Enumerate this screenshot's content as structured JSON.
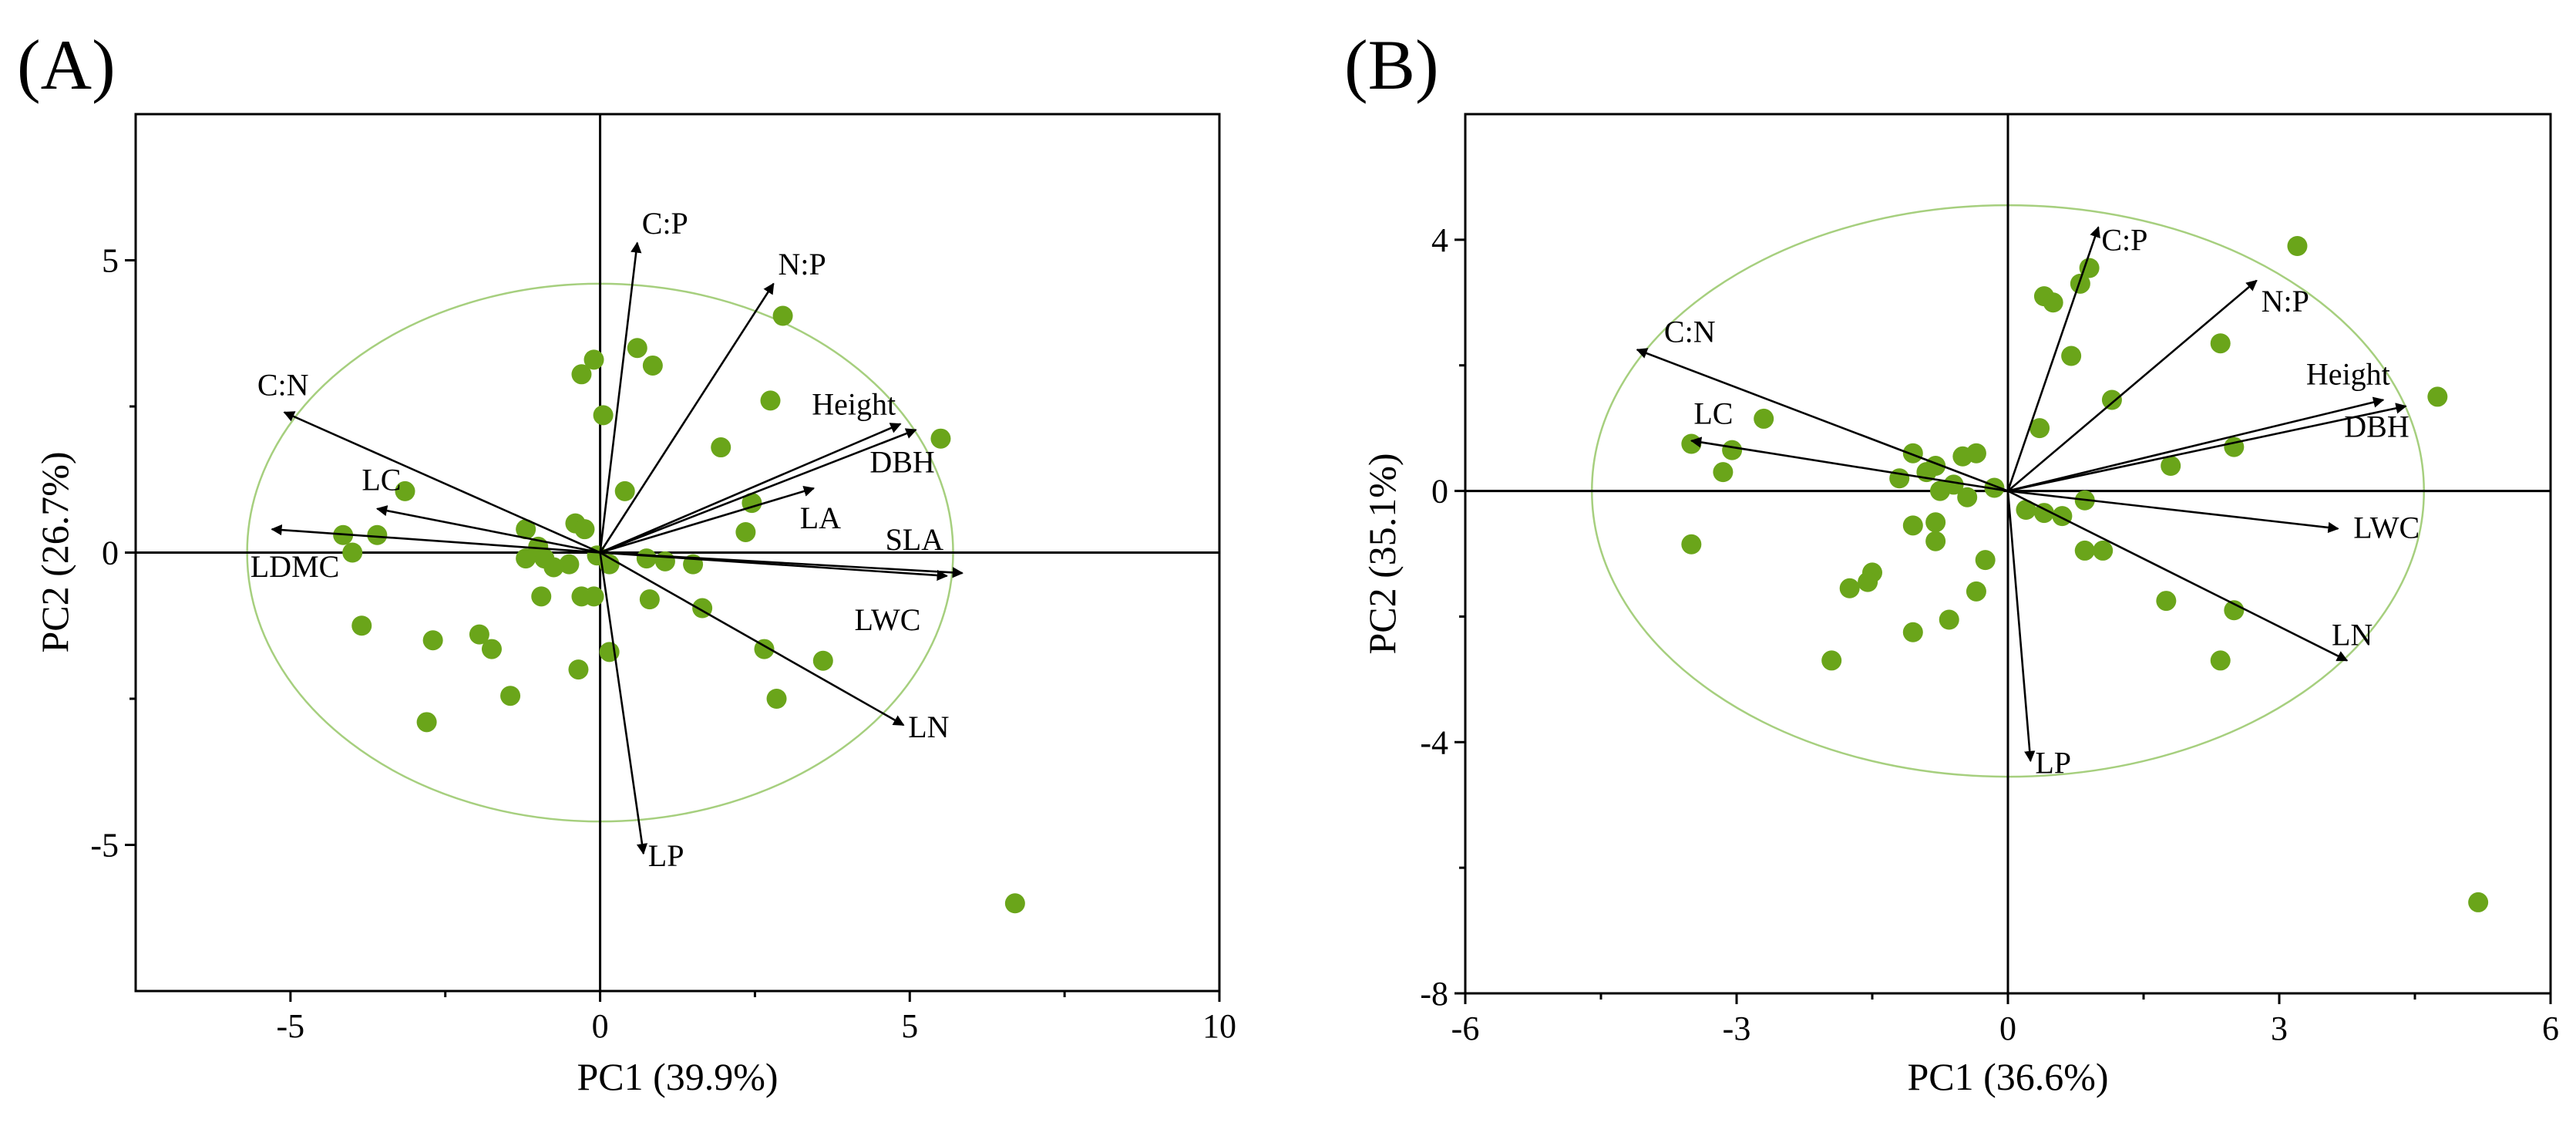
{
  "colors": {
    "point": "#6aa51a",
    "ellipse": "#a6cf7e",
    "axis": "#000000",
    "arrow": "#000000"
  },
  "chart_data": [
    {
      "type": "scatter",
      "panel_label": "(A)",
      "title": "",
      "xlabel": "PC1 (39.9%)",
      "ylabel": "PC2 (26.7%)",
      "xlim": [
        -7.5,
        10
      ],
      "ylim": [
        -7.5,
        7.5
      ],
      "xticks": [
        -5,
        0,
        5,
        10
      ],
      "xtick_labels": [
        "-5",
        "0",
        "5",
        "10"
      ],
      "yticks": [
        -5,
        0,
        5
      ],
      "ytick_labels": [
        "-5",
        "0",
        "5"
      ],
      "ellipse": {
        "cx": 0,
        "cy": 0,
        "rx": 5.7,
        "ry": 4.6
      },
      "points": [
        [
          -0.1,
          3.3
        ],
        [
          -0.3,
          3.05
        ],
        [
          0.6,
          3.5
        ],
        [
          0.85,
          3.2
        ],
        [
          0.05,
          2.35
        ],
        [
          2.95,
          4.05
        ],
        [
          2.75,
          2.6
        ],
        [
          1.95,
          1.8
        ],
        [
          5.5,
          1.95
        ],
        [
          2.45,
          0.85
        ],
        [
          2.35,
          0.35
        ],
        [
          0.4,
          1.05
        ],
        [
          -3.15,
          1.05
        ],
        [
          -4.15,
          0.3
        ],
        [
          -3.6,
          0.3
        ],
        [
          -4.0,
          0.0
        ],
        [
          -1.2,
          0.4
        ],
        [
          -1.0,
          0.1
        ],
        [
          -0.9,
          -0.1
        ],
        [
          -1.2,
          -0.1
        ],
        [
          -0.4,
          0.5
        ],
        [
          -0.25,
          0.4
        ],
        [
          -0.5,
          -0.2
        ],
        [
          -0.05,
          -0.05
        ],
        [
          0.15,
          -0.2
        ],
        [
          0.75,
          -0.1
        ],
        [
          1.05,
          -0.15
        ],
        [
          1.5,
          -0.2
        ],
        [
          -0.75,
          -0.25
        ],
        [
          -0.3,
          -0.75
        ],
        [
          -0.1,
          -0.75
        ],
        [
          -0.95,
          -0.75
        ],
        [
          0.8,
          -0.8
        ],
        [
          1.65,
          -0.95
        ],
        [
          -3.85,
          -1.25
        ],
        [
          -2.7,
          -1.5
        ],
        [
          -1.95,
          -1.4
        ],
        [
          -1.75,
          -1.65
        ],
        [
          0.15,
          -1.7
        ],
        [
          -0.35,
          -2.0
        ],
        [
          2.65,
          -1.65
        ],
        [
          3.6,
          -1.85
        ],
        [
          -1.45,
          -2.45
        ],
        [
          2.85,
          -2.5
        ],
        [
          -2.8,
          -2.9
        ],
        [
          6.7,
          -6.0
        ]
      ],
      "vectors": [
        {
          "label": "C:P",
          "x": 0.6,
          "y": 5.3
        },
        {
          "label": "N:P",
          "x": 2.8,
          "y": 4.6
        },
        {
          "label": "Height",
          "x": 4.85,
          "y": 2.2
        },
        {
          "label": "DBH",
          "x": 5.1,
          "y": 2.1
        },
        {
          "label": "LA",
          "x": 3.45,
          "y": 1.1
        },
        {
          "label": "SLA",
          "x": 5.85,
          "y": -0.35
        },
        {
          "label": "LWC",
          "x": 5.6,
          "y": -0.4
        },
        {
          "label": "LN",
          "x": 4.9,
          "y": -2.95
        },
        {
          "label": "LP",
          "x": 0.7,
          "y": -5.15
        },
        {
          "label": "C:N",
          "x": -5.1,
          "y": 2.4
        },
        {
          "label": "LC",
          "x": -3.6,
          "y": 0.75
        },
        {
          "label": "LDMC",
          "x": -5.3,
          "y": 0.4
        }
      ]
    },
    {
      "type": "scatter",
      "panel_label": "(B)",
      "title": "",
      "xlabel": "PC1 (36.6%)",
      "ylabel": "PC2 (35.1%)",
      "xlim": [
        -6,
        6
      ],
      "ylim": [
        -8,
        6
      ],
      "xticks": [
        -6,
        -3,
        0,
        3,
        6
      ],
      "xtick_labels": [
        "-6",
        "-3",
        "0",
        "3",
        "6"
      ],
      "yticks": [
        -8,
        -4,
        0,
        4
      ],
      "ytick_labels": [
        "-8",
        "-4",
        "0",
        "4"
      ],
      "ellipse": {
        "cx": 0,
        "cy": 0,
        "rx": 4.6,
        "ry": 4.55
      },
      "points": [
        [
          3.2,
          3.9
        ],
        [
          0.9,
          3.55
        ],
        [
          0.4,
          3.1
        ],
        [
          0.5,
          3.0
        ],
        [
          0.8,
          3.3
        ],
        [
          0.7,
          2.15
        ],
        [
          2.35,
          2.35
        ],
        [
          1.15,
          1.45
        ],
        [
          4.75,
          1.5
        ],
        [
          0.35,
          1.0
        ],
        [
          2.5,
          0.7
        ],
        [
          1.8,
          0.4
        ],
        [
          -2.7,
          1.15
        ],
        [
          -3.5,
          0.75
        ],
        [
          -3.05,
          0.65
        ],
        [
          -3.15,
          0.3
        ],
        [
          -1.05,
          0.6
        ],
        [
          -0.8,
          0.4
        ],
        [
          -0.5,
          0.55
        ],
        [
          -0.35,
          0.6
        ],
        [
          -1.2,
          0.2
        ],
        [
          -0.9,
          0.3
        ],
        [
          -0.6,
          0.1
        ],
        [
          -0.15,
          0.05
        ],
        [
          -0.75,
          0.0
        ],
        [
          -0.45,
          -0.1
        ],
        [
          0.2,
          -0.3
        ],
        [
          0.4,
          -0.35
        ],
        [
          0.6,
          -0.4
        ],
        [
          0.85,
          -0.15
        ],
        [
          -1.05,
          -0.55
        ],
        [
          -0.8,
          -0.5
        ],
        [
          -0.8,
          -0.8
        ],
        [
          -3.5,
          -0.85
        ],
        [
          -0.25,
          -1.1
        ],
        [
          0.85,
          -0.95
        ],
        [
          1.05,
          -0.95
        ],
        [
          -1.5,
          -1.3
        ],
        [
          -1.55,
          -1.45
        ],
        [
          -1.75,
          -1.55
        ],
        [
          -0.35,
          -1.6
        ],
        [
          1.75,
          -1.75
        ],
        [
          2.5,
          -1.9
        ],
        [
          -0.65,
          -2.05
        ],
        [
          -1.05,
          -2.25
        ],
        [
          -1.95,
          -2.7
        ],
        [
          2.35,
          -2.7
        ],
        [
          5.2,
          -6.55
        ]
      ],
      "vectors": [
        {
          "label": "C:P",
          "x": 1.0,
          "y": 4.2
        },
        {
          "label": "N:P",
          "x": 2.75,
          "y": 3.35
        },
        {
          "label": "Height",
          "x": 4.15,
          "y": 1.45
        },
        {
          "label": "DBH",
          "x": 4.4,
          "y": 1.35
        },
        {
          "label": "LWC",
          "x": 3.65,
          "y": -0.6
        },
        {
          "label": "LN",
          "x": 3.75,
          "y": -2.7
        },
        {
          "label": "LP",
          "x": 0.25,
          "y": -4.3
        },
        {
          "label": "C:N",
          "x": -4.1,
          "y": 2.25
        },
        {
          "label": "LC",
          "x": -3.5,
          "y": 0.8
        }
      ]
    }
  ]
}
